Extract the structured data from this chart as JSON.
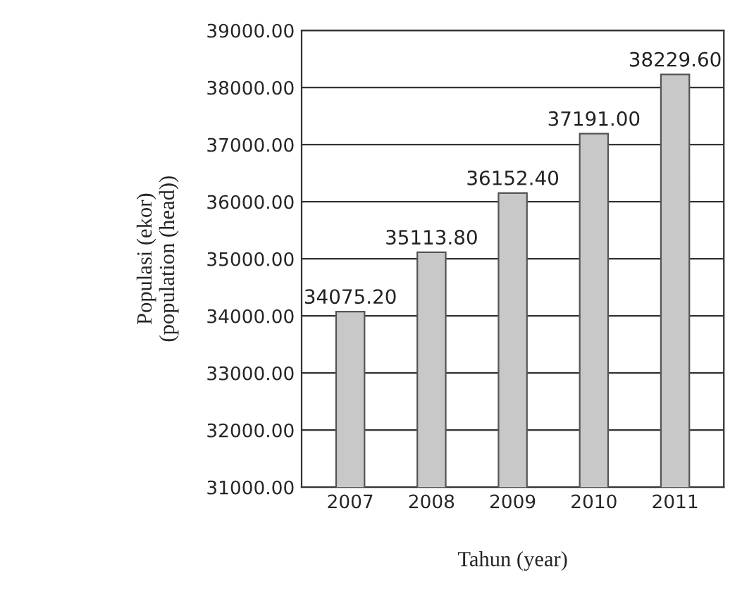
{
  "chart_data": {
    "type": "bar",
    "xlabel": "Tahun (year)",
    "ylabel": "Populasi (ekor)\n(population (head))",
    "categories": [
      "2007",
      "2008",
      "2009",
      "2010",
      "2011"
    ],
    "values": [
      34075.2,
      35113.8,
      36152.4,
      37191.0,
      38229.6
    ],
    "value_labels": [
      "34075.20",
      "35113.80",
      "36152.40",
      "37191.00",
      "38229.60"
    ],
    "color": "#c8c8c8",
    "ylim": [
      31000,
      39000
    ],
    "yticks": [
      {
        "value": 31000,
        "label": "31000.00"
      },
      {
        "value": 32000,
        "label": "32000.00"
      },
      {
        "value": 33000,
        "label": "33000.00"
      },
      {
        "value": 34000,
        "label": "34000.00"
      },
      {
        "value": 35000,
        "label": "35000.00"
      },
      {
        "value": 36000,
        "label": "36000.00"
      },
      {
        "value": 37000,
        "label": "37000.00"
      },
      {
        "value": 38000,
        "label": "38000.00"
      },
      {
        "value": 39000,
        "label": "39000.00"
      }
    ],
    "grid": "y",
    "legend": false
  }
}
